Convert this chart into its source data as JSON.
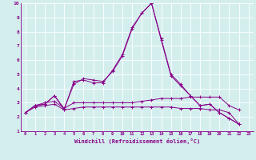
{
  "xlabel": "Windchill (Refroidissement éolien,°C)",
  "background_color": "#d4eeee",
  "grid_color": "#ffffff",
  "line_color": "#880088",
  "xlim": [
    -0.5,
    23.5
  ],
  "ylim": [
    1,
    10
  ],
  "xticks": [
    0,
    1,
    2,
    3,
    4,
    5,
    6,
    7,
    8,
    9,
    10,
    11,
    12,
    13,
    14,
    15,
    16,
    17,
    18,
    19,
    20,
    21,
    22,
    23
  ],
  "yticks": [
    1,
    2,
    3,
    4,
    5,
    6,
    7,
    8,
    9,
    10
  ],
  "series": [
    [
      2.3,
      2.8,
      2.9,
      3.5,
      2.6,
      4.3,
      4.7,
      4.6,
      4.5,
      5.2,
      6.3,
      8.2,
      9.3,
      10.0,
      7.5,
      5.0,
      4.3,
      3.5,
      2.8,
      2.9,
      2.3,
      1.9,
      1.5
    ],
    [
      2.3,
      2.8,
      2.9,
      3.5,
      2.5,
      4.5,
      4.6,
      4.4,
      4.4,
      5.3,
      6.4,
      8.3,
      9.3,
      10.0,
      7.4,
      4.9,
      4.2,
      3.5,
      2.8,
      2.9,
      2.3,
      1.9,
      1.5
    ],
    [
      2.3,
      2.8,
      3.0,
      3.1,
      2.6,
      3.0,
      3.0,
      3.0,
      3.0,
      3.0,
      3.0,
      3.0,
      3.1,
      3.2,
      3.3,
      3.3,
      3.3,
      3.4,
      3.4,
      3.4,
      3.4,
      2.8,
      2.5
    ],
    [
      2.3,
      2.7,
      2.8,
      2.9,
      2.5,
      2.6,
      2.7,
      2.7,
      2.7,
      2.7,
      2.7,
      2.7,
      2.7,
      2.7,
      2.7,
      2.7,
      2.6,
      2.6,
      2.6,
      2.5,
      2.5,
      2.3,
      1.5
    ]
  ],
  "x_values": [
    0,
    1,
    2,
    3,
    4,
    5,
    6,
    7,
    8,
    9,
    10,
    11,
    12,
    13,
    14,
    15,
    16,
    17,
    18,
    19,
    20,
    21,
    22
  ]
}
